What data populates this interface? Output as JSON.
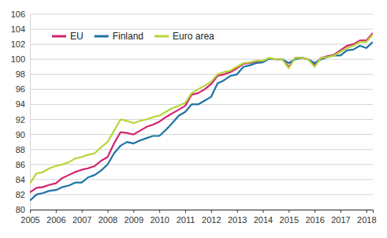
{
  "chart_data": {
    "type": "line",
    "x": [
      2005,
      2005.25,
      2005.5,
      2005.75,
      2006,
      2006.25,
      2006.5,
      2006.75,
      2007,
      2007.25,
      2007.5,
      2007.75,
      2008,
      2008.25,
      2008.5,
      2008.75,
      2009,
      2009.25,
      2009.5,
      2009.75,
      2010,
      2010.25,
      2010.5,
      2010.75,
      2011,
      2011.25,
      2011.5,
      2011.75,
      2012,
      2012.25,
      2012.5,
      2012.75,
      2013,
      2013.25,
      2013.5,
      2013.75,
      2014,
      2014.25,
      2014.5,
      2014.75,
      2015,
      2015.25,
      2015.5,
      2015.75,
      2016,
      2016.25,
      2016.5,
      2016.75,
      2017,
      2017.25,
      2017.5,
      2017.75,
      2018,
      2018.25
    ],
    "series": [
      {
        "name": "EU",
        "color": "#d4206f",
        "values": [
          82.3,
          82.9,
          83.0,
          83.3,
          83.5,
          84.2,
          84.6,
          85.0,
          85.3,
          85.5,
          85.8,
          86.5,
          87.0,
          88.8,
          90.3,
          90.2,
          90.0,
          90.5,
          91.0,
          91.3,
          91.7,
          92.3,
          92.8,
          93.3,
          93.8,
          95.3,
          95.5,
          96.0,
          96.7,
          97.8,
          98.0,
          98.3,
          98.8,
          99.4,
          99.5,
          99.7,
          99.7,
          100.1,
          100.0,
          100.0,
          99.0,
          100.2,
          100.2,
          100.0,
          99.2,
          100.2,
          100.4,
          100.6,
          101.2,
          101.8,
          102.0,
          102.5,
          102.5,
          103.5
        ]
      },
      {
        "name": "Finland",
        "color": "#1f72a6",
        "values": [
          81.2,
          82.0,
          82.2,
          82.5,
          82.6,
          83.0,
          83.2,
          83.6,
          83.6,
          84.3,
          84.6,
          85.2,
          86.0,
          87.5,
          88.5,
          89.0,
          88.8,
          89.2,
          89.5,
          89.8,
          89.8,
          90.6,
          91.5,
          92.5,
          93.0,
          94.0,
          94.0,
          94.5,
          95.0,
          96.8,
          97.2,
          97.8,
          98.0,
          99.0,
          99.2,
          99.5,
          99.6,
          100.1,
          100.0,
          100.0,
          99.5,
          100.0,
          100.2,
          100.0,
          99.5,
          100.0,
          100.3,
          100.5,
          100.5,
          101.2,
          101.3,
          101.8,
          101.5,
          102.3
        ]
      },
      {
        "name": "Euro area",
        "color": "#b6d63a",
        "values": [
          83.5,
          84.8,
          85.0,
          85.5,
          85.8,
          86.0,
          86.3,
          86.8,
          87.0,
          87.3,
          87.5,
          88.3,
          89.0,
          90.5,
          92.0,
          91.8,
          91.5,
          91.8,
          92.0,
          92.3,
          92.5,
          93.0,
          93.5,
          93.8,
          94.2,
          95.5,
          96.0,
          96.5,
          97.0,
          98.0,
          98.3,
          98.5,
          99.0,
          99.5,
          99.6,
          99.8,
          99.8,
          100.2,
          100.0,
          100.0,
          98.8,
          100.2,
          100.2,
          100.0,
          99.0,
          100.2,
          100.3,
          100.5,
          101.0,
          101.5,
          101.8,
          102.3,
          102.3,
          103.3
        ]
      }
    ],
    "xlim": [
      2005,
      2018.25
    ],
    "xticks": [
      2005,
      2006,
      2007,
      2008,
      2009,
      2010,
      2011,
      2012,
      2013,
      2014,
      2015,
      2016,
      2017,
      2018
    ],
    "ylim": [
      80,
      106
    ],
    "yticks": [
      80,
      82,
      84,
      86,
      88,
      90,
      92,
      94,
      96,
      98,
      100,
      102,
      104,
      106
    ],
    "grid": true,
    "legend": "upper left"
  }
}
